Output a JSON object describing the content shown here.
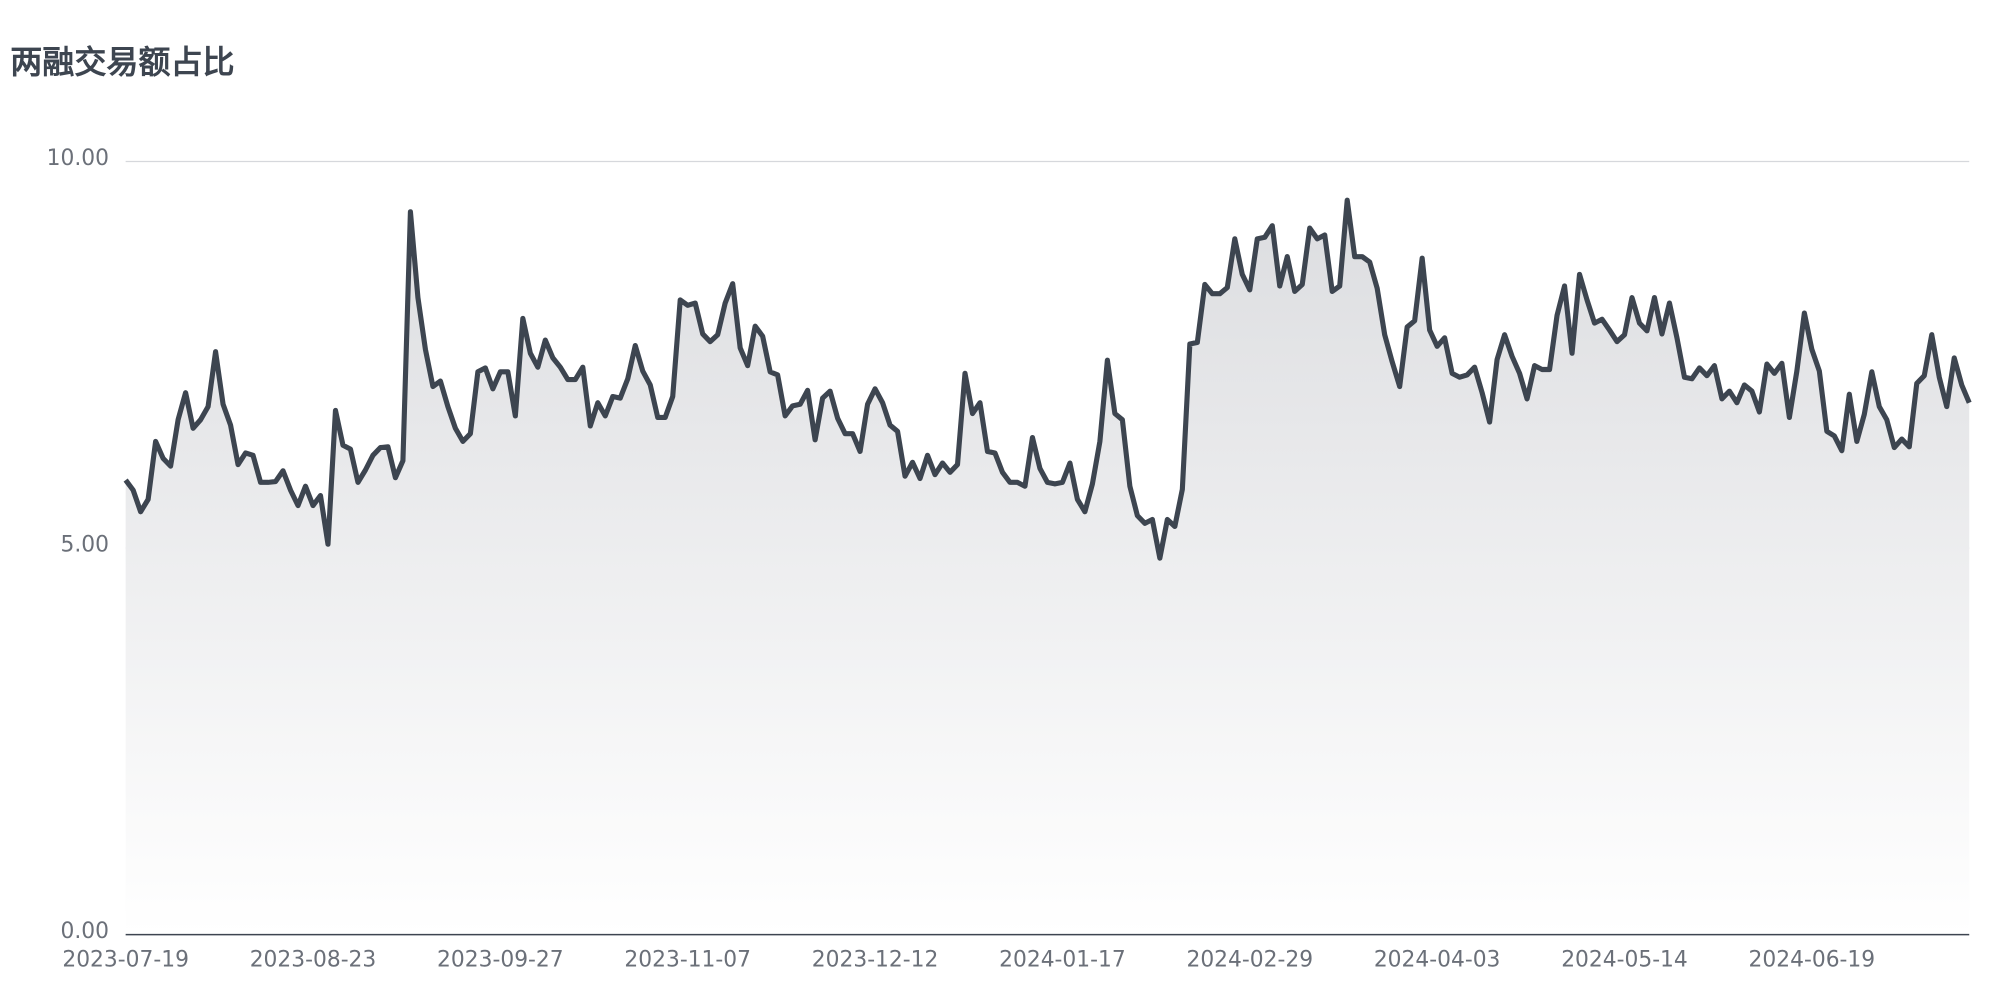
{
  "chart_data": {
    "type": "line",
    "title": "两融交易额占比",
    "color": "#3d4550",
    "fill": true,
    "grid": true,
    "ylim": [
      0,
      10
    ],
    "yticks": [
      {
        "value": 0,
        "label": "0.00"
      },
      {
        "value": 5,
        "label": "5.00"
      },
      {
        "value": 10,
        "label": "10.00"
      }
    ],
    "categories": [
      "2023-07-19",
      null,
      null,
      null,
      null,
      null,
      null,
      null,
      null,
      null,
      null,
      null,
      null,
      null,
      null,
      null,
      null,
      null,
      null,
      null,
      null,
      null,
      null,
      null,
      null,
      "2023-08-23",
      null,
      null,
      null,
      null,
      null,
      null,
      null,
      null,
      null,
      null,
      null,
      null,
      null,
      null,
      null,
      null,
      null,
      null,
      null,
      null,
      null,
      null,
      null,
      null,
      "2023-09-27",
      null,
      null,
      null,
      null,
      null,
      null,
      null,
      null,
      null,
      null,
      null,
      null,
      null,
      null,
      null,
      null,
      null,
      null,
      null,
      null,
      null,
      null,
      null,
      null,
      "2023-11-07",
      null,
      null,
      null,
      null,
      null,
      null,
      null,
      null,
      null,
      null,
      null,
      null,
      null,
      null,
      null,
      null,
      null,
      null,
      null,
      null,
      null,
      null,
      null,
      null,
      "2023-12-12",
      null,
      null,
      null,
      null,
      null,
      null,
      null,
      null,
      null,
      null,
      null,
      null,
      null,
      null,
      null,
      null,
      null,
      null,
      null,
      null,
      null,
      null,
      null,
      null,
      "2024-01-17",
      null,
      null,
      null,
      null,
      null,
      null,
      null,
      null,
      null,
      null,
      null,
      null,
      null,
      null,
      null,
      null,
      null,
      null,
      null,
      null,
      null,
      null,
      null,
      null,
      "2024-02-29",
      null,
      null,
      null,
      null,
      null,
      null,
      null,
      null,
      null,
      null,
      null,
      null,
      null,
      null,
      null,
      null,
      null,
      null,
      null,
      null,
      null,
      null,
      null,
      null,
      "2024-04-03",
      null,
      null,
      null,
      null,
      null,
      null,
      null,
      null,
      null,
      null,
      null,
      null,
      null,
      null,
      null,
      null,
      null,
      null,
      null,
      null,
      null,
      null,
      null,
      null,
      "2024-05-14",
      null,
      null,
      null,
      null,
      null,
      null,
      null,
      null,
      null,
      null,
      null,
      null,
      null,
      null,
      null,
      null,
      null,
      null,
      null,
      null,
      null,
      null,
      null,
      null,
      "2024-06-19",
      null,
      null,
      null,
      null,
      null,
      null,
      null,
      null,
      null,
      null,
      null,
      null,
      null,
      null,
      null,
      null,
      null,
      null,
      null,
      null,
      null
    ],
    "values": [
      5.88,
      5.75,
      5.47,
      5.63,
      6.38,
      6.16,
      6.06,
      6.66,
      7.01,
      6.55,
      6.66,
      6.83,
      7.54,
      6.86,
      6.59,
      6.08,
      6.23,
      6.2,
      5.85,
      5.85,
      5.86,
      6.0,
      5.75,
      5.55,
      5.8,
      5.55,
      5.68,
      5.05,
      6.78,
      6.33,
      6.28,
      5.85,
      6.01,
      6.2,
      6.3,
      6.31,
      5.91,
      6.13,
      9.35,
      8.24,
      7.57,
      7.09,
      7.16,
      6.83,
      6.55,
      6.38,
      6.48,
      7.28,
      7.33,
      7.06,
      7.28,
      7.28,
      6.71,
      7.97,
      7.52,
      7.34,
      7.69,
      7.46,
      7.34,
      7.18,
      7.18,
      7.34,
      6.58,
      6.88,
      6.71,
      6.96,
      6.94,
      7.19,
      7.62,
      7.29,
      7.11,
      6.69,
      6.69,
      6.96,
      8.21,
      8.14,
      8.17,
      7.77,
      7.67,
      7.76,
      8.17,
      8.42,
      7.59,
      7.36,
      7.87,
      7.74,
      7.28,
      7.24,
      6.71,
      6.84,
      6.86,
      7.04,
      6.4,
      6.94,
      7.03,
      6.68,
      6.48,
      6.48,
      6.25,
      6.86,
      7.06,
      6.88,
      6.59,
      6.51,
      5.93,
      6.11,
      5.9,
      6.2,
      5.95,
      6.1,
      5.98,
      6.08,
      7.26,
      6.74,
      6.88,
      6.25,
      6.23,
      5.98,
      5.85,
      5.85,
      5.8,
      6.43,
      6.03,
      5.85,
      5.83,
      5.85,
      6.1,
      5.63,
      5.47,
      5.83,
      6.38,
      7.43,
      6.74,
      6.66,
      5.8,
      5.42,
      5.32,
      5.37,
      4.87,
      5.37,
      5.28,
      5.76,
      7.64,
      7.66,
      8.41,
      8.29,
      8.29,
      8.37,
      9.0,
      8.54,
      8.34,
      9.0,
      9.02,
      9.17,
      8.39,
      8.77,
      8.32,
      8.41,
      9.14,
      9.0,
      9.05,
      8.32,
      8.39,
      9.5,
      8.77,
      8.77,
      8.7,
      8.36,
      7.76,
      7.41,
      7.09,
      7.86,
      7.94,
      8.75,
      7.82,
      7.61,
      7.72,
      7.26,
      7.21,
      7.24,
      7.34,
      7.01,
      6.63,
      7.44,
      7.76,
      7.48,
      7.26,
      6.93,
      7.36,
      7.31,
      7.31,
      8.01,
      8.39,
      7.52,
      8.54,
      8.21,
      7.91,
      7.96,
      7.82,
      7.67,
      7.76,
      8.24,
      7.91,
      7.81,
      8.24,
      7.77,
      8.17,
      7.72,
      7.21,
      7.19,
      7.33,
      7.23,
      7.36,
      6.93,
      7.03,
      6.88,
      7.11,
      7.03,
      6.76,
      7.38,
      7.26,
      7.39,
      6.69,
      7.29,
      8.04,
      7.57,
      7.29,
      6.51,
      6.45,
      6.26,
      6.99,
      6.38,
      6.73,
      7.28,
      6.83,
      6.66,
      6.3,
      6.41,
      6.31,
      7.13,
      7.23,
      7.76,
      7.21,
      6.83,
      7.46,
      7.11,
      6.88
    ]
  }
}
